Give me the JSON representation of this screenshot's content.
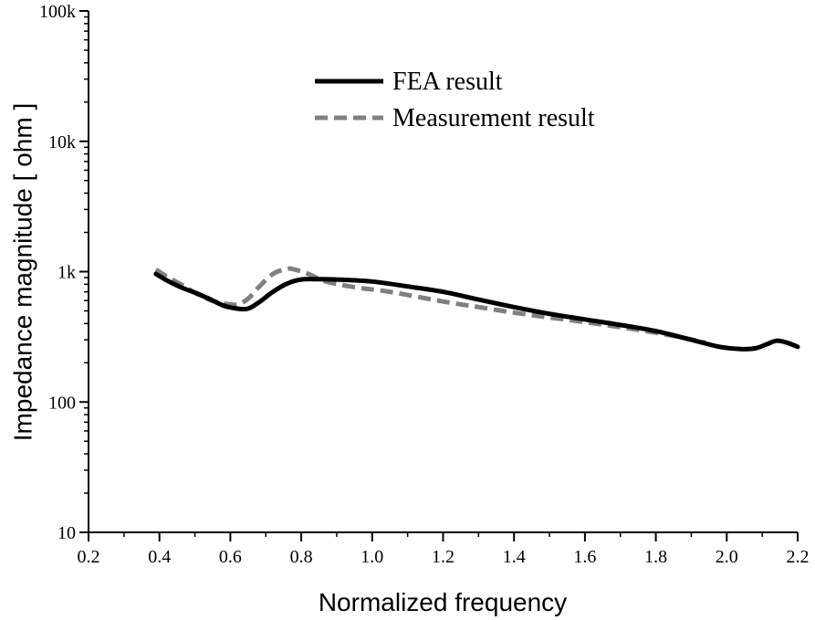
{
  "chart_data": {
    "type": "line",
    "xlabel": "Normalized frequency",
    "ylabel": "Impedance magnitude [ ohm ]",
    "xlim": [
      0.2,
      2.2
    ],
    "ylim": [
      10,
      100000
    ],
    "yscale": "log",
    "x_ticks": [
      0.2,
      0.4,
      0.6,
      0.8,
      1.0,
      1.2,
      1.4,
      1.6,
      1.8,
      2.0,
      2.2
    ],
    "x_tick_labels": [
      "0.2",
      "0.4",
      "0.6",
      "0.8",
      "1.0",
      "1.2",
      "1.4",
      "1.6",
      "1.8",
      "2.0",
      "2.2"
    ],
    "y_ticks": [
      10,
      100,
      1000,
      10000,
      100000
    ],
    "y_tick_labels": [
      "10",
      "100",
      "1k",
      "10k",
      "100k"
    ],
    "grid": false,
    "legend_position": "top-center",
    "series": [
      {
        "name": "FEA result",
        "color": "#000000",
        "style": "solid",
        "x": [
          0.39,
          0.42,
          0.46,
          0.5,
          0.54,
          0.58,
          0.62,
          0.65,
          0.68,
          0.72,
          0.76,
          0.8,
          0.85,
          0.9,
          1.0,
          1.1,
          1.2,
          1.3,
          1.4,
          1.5,
          1.6,
          1.7,
          1.8,
          1.9,
          1.98,
          2.04,
          2.08,
          2.11,
          2.14,
          2.17,
          2.2
        ],
        "y": [
          960,
          860,
          760,
          690,
          620,
          550,
          520,
          520,
          580,
          700,
          810,
          870,
          875,
          870,
          840,
          770,
          700,
          610,
          535,
          475,
          430,
          390,
          350,
          300,
          265,
          255,
          258,
          275,
          295,
          285,
          265
        ]
      },
      {
        "name": "Measurement result",
        "color": "#808080",
        "style": "dashed",
        "x": [
          0.39,
          0.42,
          0.46,
          0.5,
          0.54,
          0.58,
          0.62,
          0.65,
          0.68,
          0.72,
          0.76,
          0.78,
          0.82,
          0.87,
          0.95,
          1.05,
          1.2,
          1.3,
          1.4,
          1.5,
          1.6,
          1.7,
          1.8,
          1.88,
          1.94
        ],
        "y": [
          1040,
          920,
          800,
          690,
          610,
          570,
          560,
          620,
          760,
          960,
          1050,
          1040,
          960,
          840,
          760,
          700,
          590,
          535,
          485,
          445,
          410,
          375,
          340,
          310,
          285
        ]
      }
    ]
  }
}
